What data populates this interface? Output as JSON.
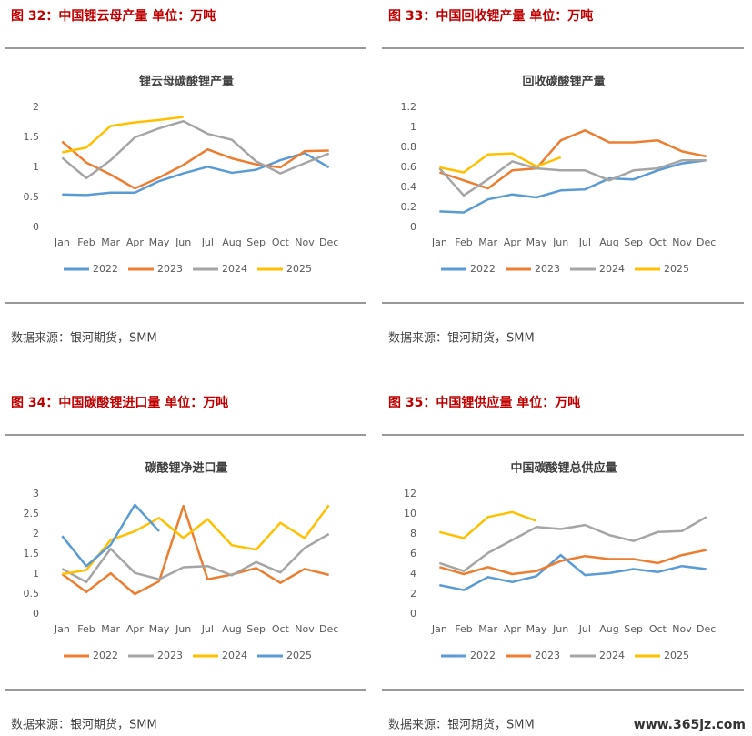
{
  "chart_data": [
    {
      "type": "line",
      "heading": "图 32：中国锂云母产量   单位：万吨",
      "title": "锂云母碳酸锂产量",
      "source": "数据来源：银河期货，SMM",
      "categories": [
        "Jan",
        "Feb",
        "Mar",
        "Apr",
        "May",
        "Jun",
        "Jul",
        "Aug",
        "Sep",
        "Oct",
        "Nov",
        "Dec"
      ],
      "ylim": [
        0,
        2
      ],
      "yticks": [
        0,
        0.5,
        1,
        1.5,
        2
      ],
      "series": [
        {
          "name": "2022",
          "color": "#5b9bd5",
          "values": [
            0.55,
            0.54,
            0.58,
            0.58,
            0.77,
            0.9,
            1.01,
            0.91,
            0.96,
            1.12,
            1.24,
            1.0
          ]
        },
        {
          "name": "2023",
          "color": "#ed7d31",
          "values": [
            1.43,
            1.08,
            0.88,
            0.65,
            0.83,
            1.04,
            1.3,
            1.15,
            1.05,
            1.0,
            1.27,
            1.28
          ]
        },
        {
          "name": "2024",
          "color": "#a5a5a5",
          "values": [
            1.16,
            0.82,
            1.12,
            1.5,
            1.65,
            1.77,
            1.56,
            1.46,
            1.1,
            0.9,
            1.07,
            1.23
          ]
        },
        {
          "name": "2025",
          "color": "#ffc000",
          "values": [
            1.25,
            1.33,
            1.69,
            1.75,
            1.79,
            1.84,
            null,
            null,
            null,
            null,
            null,
            null
          ]
        }
      ]
    },
    {
      "type": "line",
      "heading": "图 33：中国回收锂产量   单位：万吨",
      "title": "回收碳酸锂产量",
      "source": "数据来源：银河期货，SMM",
      "categories": [
        "Jan",
        "Feb",
        "Mar",
        "Apr",
        "May",
        "Jun",
        "Jul",
        "Aug",
        "Sep",
        "Oct",
        "Nov",
        "Dec"
      ],
      "ylim": [
        0,
        1.2
      ],
      "yticks": [
        0,
        0.2,
        0.4,
        0.6,
        0.8,
        1,
        1.2
      ],
      "series": [
        {
          "name": "2022",
          "color": "#5b9bd5",
          "values": [
            0.16,
            0.15,
            0.28,
            0.33,
            0.3,
            0.37,
            0.38,
            0.49,
            0.48,
            0.57,
            0.64,
            0.67
          ]
        },
        {
          "name": "2023",
          "color": "#ed7d31",
          "values": [
            0.55,
            0.47,
            0.39,
            0.57,
            0.59,
            0.87,
            0.97,
            0.85,
            0.85,
            0.87,
            0.76,
            0.71
          ]
        },
        {
          "name": "2024",
          "color": "#a5a5a5",
          "values": [
            0.59,
            0.32,
            0.48,
            0.66,
            0.59,
            0.57,
            0.57,
            0.47,
            0.57,
            0.59,
            0.67,
            0.67
          ]
        },
        {
          "name": "2025",
          "color": "#ffc000",
          "values": [
            0.6,
            0.55,
            0.73,
            0.74,
            0.61,
            0.7,
            null,
            null,
            null,
            null,
            null,
            null
          ]
        }
      ]
    },
    {
      "type": "line",
      "heading": "图 34：中国碳酸锂进口量   单位：万吨",
      "title": "碳酸锂净进口量",
      "source": "数据来源：银河期货，SMM",
      "categories": [
        "Jan",
        "Feb",
        "Mar",
        "Apr",
        "May",
        "Jun",
        "Jul",
        "Aug",
        "Sep",
        "Oct",
        "Nov",
        "Dec"
      ],
      "ylim": [
        0,
        3
      ],
      "yticks": [
        0,
        0.5,
        1,
        1.5,
        2,
        2.5,
        3
      ],
      "series": [
        {
          "name": "2022",
          "color": "#ed7d31",
          "values": [
            1.0,
            0.55,
            1.02,
            0.5,
            0.82,
            2.7,
            0.87,
            0.99,
            1.15,
            0.78,
            1.13,
            0.98
          ]
        },
        {
          "name": "2023",
          "color": "#a5a5a5",
          "values": [
            1.13,
            0.8,
            1.63,
            1.03,
            0.87,
            1.17,
            1.2,
            0.97,
            1.3,
            1.04,
            1.65,
            2.0
          ]
        },
        {
          "name": "2024",
          "color": "#ffc000",
          "values": [
            1.0,
            1.1,
            1.85,
            2.07,
            2.4,
            1.9,
            2.37,
            1.72,
            1.61,
            2.28,
            1.9,
            2.72
          ]
        },
        {
          "name": "2025",
          "color": "#5b9bd5",
          "values": [
            1.95,
            1.2,
            1.73,
            2.73,
            2.07,
            null,
            null,
            null,
            null,
            null,
            null,
            null
          ]
        }
      ]
    },
    {
      "type": "line",
      "heading": "图 35：中国锂供应量   单位：万吨",
      "title": "中国碳酸锂总供应量",
      "source": "数据来源：银河期货，SMM",
      "categories": [
        "Jan",
        "Feb",
        "Mar",
        "Apr",
        "May",
        "Jun",
        "Jul",
        "Aug",
        "Sep",
        "Oct",
        "Nov",
        "Dec"
      ],
      "ylim": [
        0,
        12
      ],
      "yticks": [
        0,
        2,
        4,
        6,
        8,
        10,
        12
      ],
      "series": [
        {
          "name": "2022",
          "color": "#5b9bd5",
          "values": [
            2.9,
            2.4,
            3.7,
            3.2,
            3.8,
            5.9,
            3.9,
            4.1,
            4.5,
            4.2,
            4.8,
            4.5
          ]
        },
        {
          "name": "2023",
          "color": "#ed7d31",
          "values": [
            4.7,
            4.0,
            4.7,
            4.0,
            4.3,
            5.3,
            5.8,
            5.5,
            5.5,
            5.1,
            5.9,
            6.4
          ]
        },
        {
          "name": "2024",
          "color": "#a5a5a5",
          "values": [
            5.1,
            4.3,
            6.1,
            7.4,
            8.7,
            8.5,
            8.9,
            7.9,
            7.3,
            8.2,
            8.3,
            9.7
          ]
        },
        {
          "name": "2025",
          "color": "#ffc000",
          "values": [
            8.2,
            7.6,
            9.7,
            10.2,
            9.3,
            null,
            null,
            null,
            null,
            null,
            null,
            null
          ]
        }
      ]
    }
  ],
  "watermark": "www.365jz.com"
}
